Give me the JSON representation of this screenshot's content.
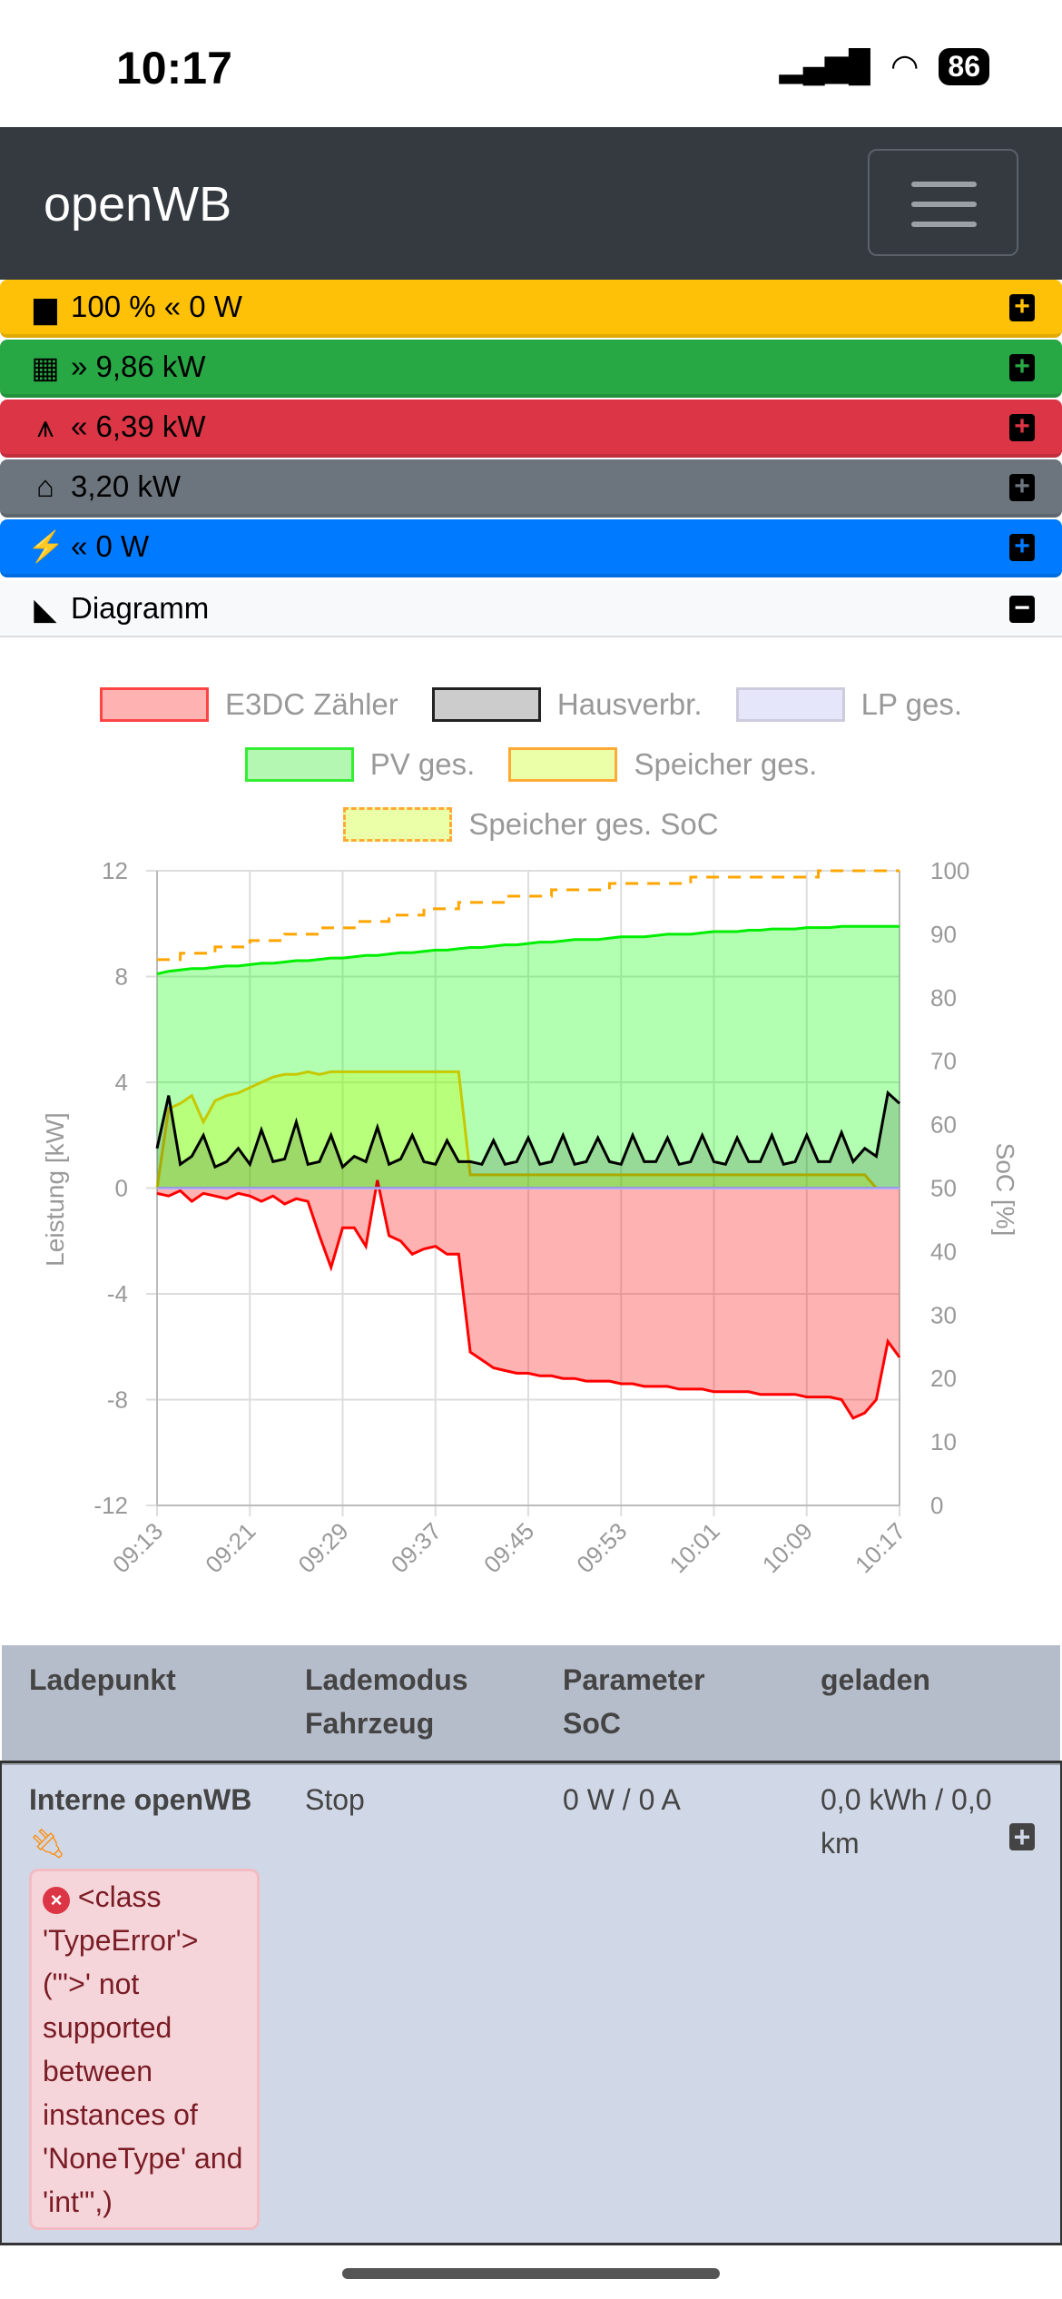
{
  "status_bar": {
    "time": "10:17",
    "battery": "86"
  },
  "navbar": {
    "brand": "openWB"
  },
  "summary": [
    {
      "icon": "battery-icon",
      "arrow": "«",
      "text": "100 % « 0 W",
      "color": "#ffc107"
    },
    {
      "icon": "solar-panel-icon",
      "text": "» 9,86 kW",
      "color": "#28a745"
    },
    {
      "icon": "power-tower-icon",
      "text": "« 6,39 kW",
      "color": "#dc3545"
    },
    {
      "icon": "house-icon",
      "text": "3,20 kW",
      "color": "#6c757d"
    },
    {
      "icon": "charging-station-icon",
      "text": "« 0 W",
      "color": "#007bff"
    }
  ],
  "diagram": {
    "label": "Diagramm"
  },
  "chart_data": {
    "type": "line",
    "legend": [
      "E3DC Zähler",
      "Hausverbr.",
      "LP ges.",
      "PV ges.",
      "Speicher ges.",
      "Speicher ges. SoC"
    ],
    "x_ticks": [
      "09:13",
      "09:21",
      "09:29",
      "09:37",
      "09:45",
      "09:53",
      "10:01",
      "10:09",
      "10:17"
    ],
    "x_start": "09:13",
    "x_step_minutes": 1,
    "ylabel": "Leistung [kW]",
    "ylim": [
      -12,
      12
    ],
    "yticks": [
      12,
      8,
      4,
      0,
      -4,
      -8,
      -12
    ],
    "y2label": "SoC [%]",
    "y2lim": [
      0,
      100
    ],
    "y2ticks": [
      100,
      90,
      80,
      70,
      60,
      50,
      40,
      30,
      20,
      10,
      0
    ],
    "series": [
      {
        "name": "E3DC Zähler",
        "color": "#ff0000",
        "fill": "rgba(255,0,0,0.3)",
        "values": [
          -0.2,
          -0.3,
          -0.1,
          -0.5,
          -0.2,
          -0.3,
          -0.4,
          -0.2,
          -0.3,
          -0.5,
          -0.3,
          -0.6,
          -0.4,
          -0.5,
          -1.8,
          -3.0,
          -1.5,
          -1.5,
          -2.2,
          0.3,
          -1.8,
          -2.0,
          -2.5,
          -2.3,
          -2.2,
          -2.5,
          -2.5,
          -6.2,
          -6.5,
          -6.8,
          -6.9,
          -7.0,
          -7.0,
          -7.1,
          -7.1,
          -7.2,
          -7.2,
          -7.3,
          -7.3,
          -7.3,
          -7.4,
          -7.4,
          -7.5,
          -7.5,
          -7.5,
          -7.6,
          -7.6,
          -7.6,
          -7.7,
          -7.7,
          -7.7,
          -7.7,
          -7.8,
          -7.8,
          -7.8,
          -7.8,
          -7.9,
          -7.9,
          -7.9,
          -8.0,
          -8.7,
          -8.5,
          -8.0,
          -5.8,
          -6.4
        ]
      },
      {
        "name": "Hausverbr.",
        "color": "#000000",
        "fill": "rgba(0,0,0,0.15)",
        "values": [
          1.5,
          3.5,
          0.9,
          1.2,
          2.0,
          0.8,
          1.0,
          1.5,
          0.9,
          2.2,
          1.0,
          1.1,
          2.5,
          0.9,
          1.0,
          2.0,
          0.8,
          1.2,
          1.0,
          2.3,
          0.9,
          1.1,
          2.0,
          1.0,
          0.9,
          1.8,
          1.0,
          1.0,
          0.9,
          1.8,
          0.9,
          1.0,
          1.9,
          0.9,
          1.0,
          2.0,
          0.9,
          1.0,
          1.9,
          1.0,
          0.9,
          2.0,
          1.0,
          1.0,
          1.9,
          0.9,
          1.0,
          2.0,
          1.0,
          0.9,
          1.9,
          1.0,
          1.0,
          2.0,
          0.9,
          1.0,
          2.0,
          1.0,
          1.0,
          2.1,
          1.0,
          1.5,
          1.2,
          3.6,
          3.2
        ]
      },
      {
        "name": "LP ges.",
        "color": "#b0b0ff",
        "fill": "rgba(0,0,255,0.1)",
        "values": [
          0,
          0,
          0,
          0,
          0,
          0,
          0,
          0,
          0,
          0,
          0,
          0,
          0,
          0,
          0,
          0,
          0,
          0,
          0,
          0,
          0,
          0,
          0,
          0,
          0,
          0,
          0,
          0,
          0,
          0,
          0,
          0,
          0,
          0,
          0,
          0,
          0,
          0,
          0,
          0,
          0,
          0,
          0,
          0,
          0,
          0,
          0,
          0,
          0,
          0,
          0,
          0,
          0,
          0,
          0,
          0,
          0,
          0,
          0,
          0,
          0,
          0,
          0,
          0,
          0
        ]
      },
      {
        "name": "PV ges.",
        "color": "#00ee00",
        "fill": "rgba(0,255,0,0.3)",
        "values": [
          8.1,
          8.2,
          8.25,
          8.3,
          8.3,
          8.35,
          8.4,
          8.4,
          8.45,
          8.5,
          8.5,
          8.55,
          8.6,
          8.6,
          8.65,
          8.7,
          8.7,
          8.75,
          8.8,
          8.8,
          8.85,
          8.9,
          8.9,
          8.95,
          9.0,
          9.0,
          9.05,
          9.1,
          9.1,
          9.15,
          9.2,
          9.2,
          9.25,
          9.3,
          9.3,
          9.35,
          9.4,
          9.4,
          9.4,
          9.45,
          9.5,
          9.5,
          9.5,
          9.55,
          9.6,
          9.6,
          9.6,
          9.65,
          9.7,
          9.7,
          9.7,
          9.75,
          9.75,
          9.8,
          9.8,
          9.8,
          9.85,
          9.85,
          9.85,
          9.9,
          9.9,
          9.9,
          9.9,
          9.9,
          9.9
        ]
      },
      {
        "name": "Speicher ges.",
        "color": "#c8c800",
        "fill": "rgba(200,255,0,0.3)",
        "values": [
          0,
          3.0,
          3.2,
          3.5,
          2.5,
          3.3,
          3.5,
          3.6,
          3.8,
          4.0,
          4.2,
          4.3,
          4.3,
          4.4,
          4.3,
          4.4,
          4.4,
          4.4,
          4.4,
          4.4,
          4.4,
          4.4,
          4.4,
          4.4,
          4.4,
          4.4,
          4.4,
          0.5,
          0.5,
          0.5,
          0.5,
          0.5,
          0.5,
          0.5,
          0.5,
          0.5,
          0.5,
          0.5,
          0.5,
          0.5,
          0.5,
          0.5,
          0.5,
          0.5,
          0.5,
          0.5,
          0.5,
          0.5,
          0.5,
          0.5,
          0.5,
          0.5,
          0.5,
          0.5,
          0.5,
          0.5,
          0.5,
          0.5,
          0.5,
          0.5,
          0.5,
          0.5,
          0,
          0,
          0
        ]
      },
      {
        "name": "Speicher ges. SoC",
        "color": "#ffa500",
        "dashed": true,
        "axis": "right",
        "values": [
          86,
          86,
          87,
          87,
          87,
          88,
          88,
          88,
          89,
          89,
          89,
          90,
          90,
          90,
          91,
          91,
          91,
          92,
          92,
          92,
          93,
          93,
          93,
          94,
          94,
          94,
          95,
          95,
          95,
          95,
          96,
          96,
          96,
          96,
          97,
          97,
          97,
          97,
          97,
          98,
          98,
          98,
          98,
          98,
          98,
          98,
          99,
          99,
          99,
          99,
          99,
          99,
          99,
          99,
          99,
          99,
          99,
          100,
          100,
          100,
          100,
          100,
          100,
          100,
          100
        ]
      }
    ]
  },
  "table": {
    "headers": [
      "Ladepunkt",
      "Lademodus\nFahrzeug",
      "Parameter\nSoC",
      "geladen"
    ],
    "headers_lines": [
      [
        "Ladepunkt"
      ],
      [
        "Lademodus",
        "Fahrzeug"
      ],
      [
        "Parameter",
        "SoC"
      ],
      [
        "geladen"
      ]
    ],
    "rows": [
      {
        "name": "Interne openWB",
        "mode": "Stop",
        "params": "0 W / 0 A",
        "charged": "0,0 kWh / 0,0 km",
        "error": "<class 'TypeError'> (\"'>' not supported between instances of 'NoneType' and 'int'\",)"
      }
    ]
  }
}
